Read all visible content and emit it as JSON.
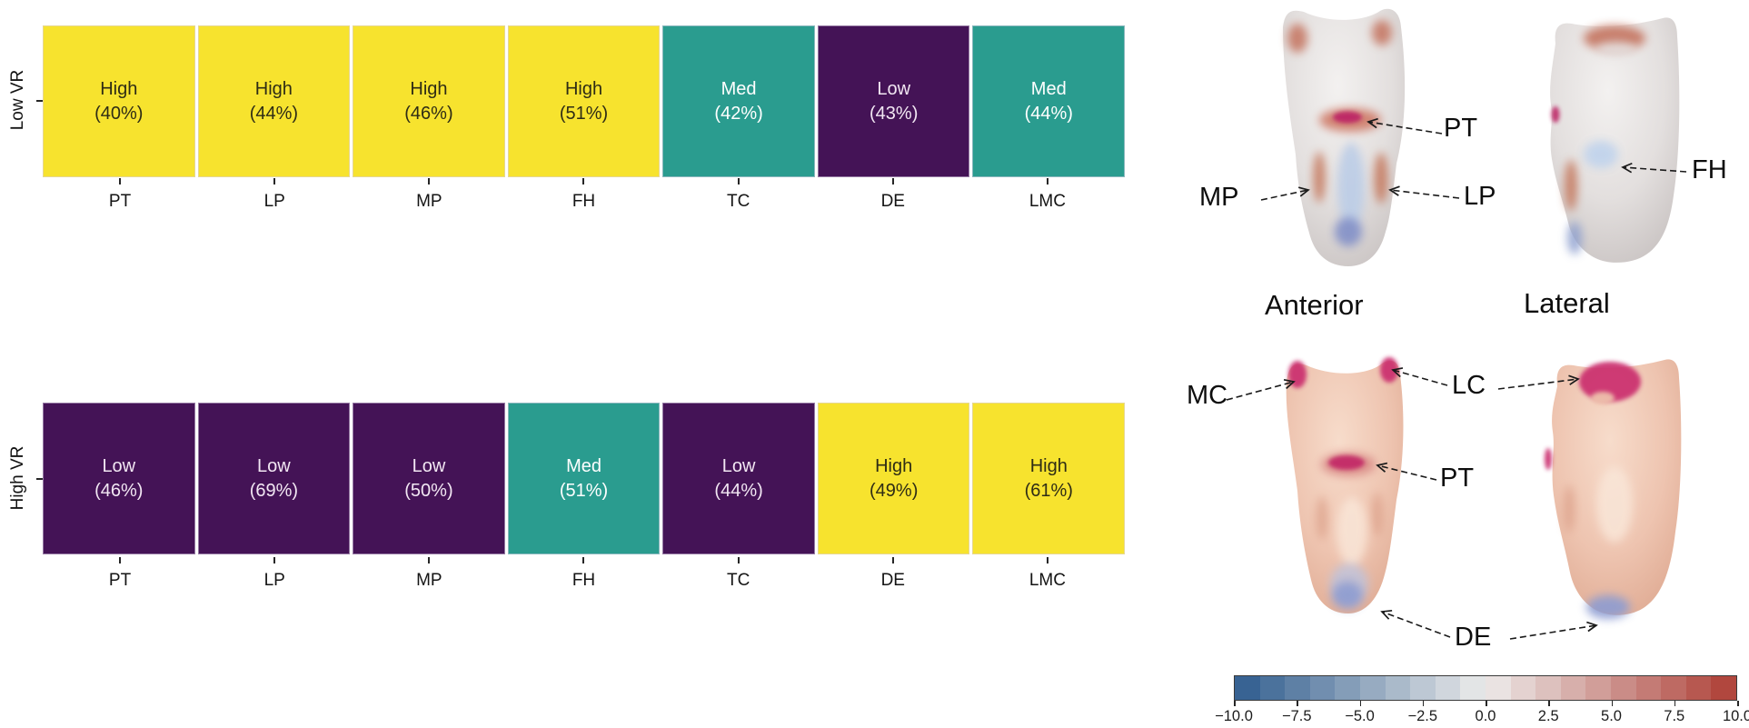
{
  "figure": {
    "background": "#ffffff",
    "description_labels": [
      "Low VR",
      "High VR"
    ]
  },
  "chart_data": [
    {
      "type": "heatmap",
      "row_label": "Low VR",
      "categories": [
        "PT",
        "LP",
        "MP",
        "FH",
        "TC",
        "DE",
        "LMC"
      ],
      "cells": [
        {
          "label": "High",
          "pct": "(40%)",
          "level": "high"
        },
        {
          "label": "High",
          "pct": "(44%)",
          "level": "high"
        },
        {
          "label": "High",
          "pct": "(46%)",
          "level": "high"
        },
        {
          "label": "High",
          "pct": "(51%)",
          "level": "high"
        },
        {
          "label": "Med",
          "pct": "(42%)",
          "level": "med"
        },
        {
          "label": "Low",
          "pct": "(43%)",
          "level": "low"
        },
        {
          "label": "Med",
          "pct": "(44%)",
          "level": "med"
        }
      ]
    },
    {
      "type": "heatmap",
      "row_label": "High VR",
      "categories": [
        "PT",
        "LP",
        "MP",
        "FH",
        "TC",
        "DE",
        "LMC"
      ],
      "cells": [
        {
          "label": "Low",
          "pct": "(46%)",
          "level": "low"
        },
        {
          "label": "Low",
          "pct": "(69%)",
          "level": "low"
        },
        {
          "label": "Low",
          "pct": "(50%)",
          "level": "low"
        },
        {
          "label": "Med",
          "pct": "(51%)",
          "level": "med"
        },
        {
          "label": "Low",
          "pct": "(44%)",
          "level": "low"
        },
        {
          "label": "High",
          "pct": "(49%)",
          "level": "high"
        },
        {
          "label": "High",
          "pct": "(61%)",
          "level": "high"
        }
      ]
    },
    {
      "type": "colorbar",
      "orientation": "horizontal",
      "min": -10,
      "max": 10,
      "segments": 20,
      "tick_labels": [
        "−10.0",
        "−7.5",
        "−5.0",
        "−2.5",
        "0.0",
        "2.5",
        "5.0",
        "7.5",
        "10.0"
      ],
      "color_min": "#2e5c8e",
      "color_mid": "#edeceb",
      "color_max": "#ae3e35"
    }
  ],
  "colors": {
    "high": "#f7e32e",
    "med": "#2a9c8f",
    "low": "#441356",
    "text_on_high": "#2e2c15",
    "text_on_med": "#ffffff",
    "text_on_low": "#f2e7f3",
    "axis_tick": "#262626"
  },
  "limb_figure": {
    "view_labels": {
      "anterior": "Anterior",
      "lateral": "Lateral"
    },
    "annotations": {
      "mp": "MP",
      "pt_top": "PT",
      "lp": "LP",
      "fh": "FH",
      "mc": "MC",
      "lc": "LC",
      "pt_bottom": "PT",
      "de": "DE"
    }
  }
}
